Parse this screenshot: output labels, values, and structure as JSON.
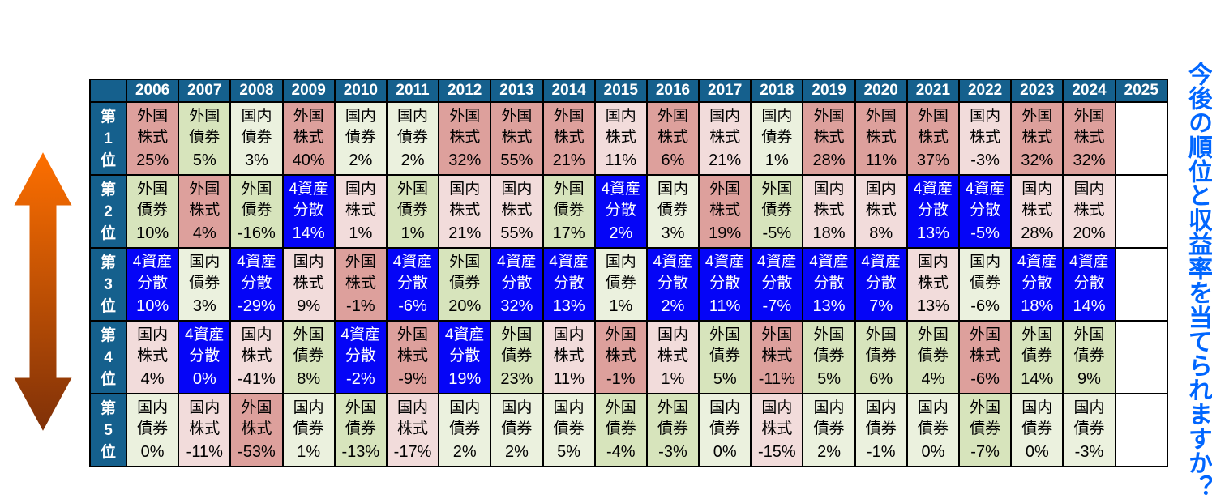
{
  "page": {
    "background": "#FFFFFF"
  },
  "side_note": {
    "text": "今後の順位と収益率を当てられますか？",
    "color": "#0066FF"
  },
  "arrow": {
    "direction": "up-down",
    "color_top": "#FF7000",
    "color_bottom": "#7E3008",
    "outline": "#FFFFFF"
  },
  "colors": {
    "header_bg": "#15608D",
    "header_text": "#FFFFFF",
    "grid_border": "#000000"
  },
  "chart_data": {
    "type": "table",
    "title": "",
    "years": [
      "2006",
      "2007",
      "2008",
      "2009",
      "2010",
      "2011",
      "2012",
      "2013",
      "2014",
      "2015",
      "2016",
      "2017",
      "2018",
      "2019",
      "2020",
      "2021",
      "2022",
      "2023",
      "2024",
      "2025"
    ],
    "empty_years": [
      "2025"
    ],
    "rank_labels": [
      "第1位",
      "第2位",
      "第3位",
      "第4位",
      "第5位"
    ],
    "assets": {
      "fe": {
        "name": "外国株式",
        "lines": [
          "外国",
          "株式"
        ],
        "bg": "#DDA09C",
        "fg": "#000000"
      },
      "de": {
        "name": "国内株式",
        "lines": [
          "国内",
          "株式"
        ],
        "bg": "#F2DCDB",
        "fg": "#000000"
      },
      "fb": {
        "name": "外国債券",
        "lines": [
          "外国",
          "債券"
        ],
        "bg": "#D7E4BC",
        "fg": "#000000"
      },
      "db": {
        "name": "国内債券",
        "lines": [
          "国内",
          "債券"
        ],
        "bg": "#EBF1DE",
        "fg": "#000000"
      },
      "fa": {
        "name": "4資産分散",
        "lines": [
          "4資産",
          "分散"
        ],
        "bg": "#0505F7",
        "fg": "#FFFFFF"
      }
    },
    "rows": [
      {
        "rank": "第1位",
        "cells": [
          {
            "asset": "fe",
            "value": "25%"
          },
          {
            "asset": "fb",
            "value": "5%"
          },
          {
            "asset": "db",
            "value": "3%"
          },
          {
            "asset": "fe",
            "value": "40%"
          },
          {
            "asset": "db",
            "value": "2%"
          },
          {
            "asset": "db",
            "value": "2%"
          },
          {
            "asset": "fe",
            "value": "32%"
          },
          {
            "asset": "fe",
            "value": "55%"
          },
          {
            "asset": "fe",
            "value": "21%"
          },
          {
            "asset": "de",
            "value": "11%"
          },
          {
            "asset": "fe",
            "value": "6%"
          },
          {
            "asset": "de",
            "value": "21%"
          },
          {
            "asset": "db",
            "value": "1%"
          },
          {
            "asset": "fe",
            "value": "28%"
          },
          {
            "asset": "fe",
            "value": "11%"
          },
          {
            "asset": "fe",
            "value": "37%"
          },
          {
            "asset": "de",
            "value": "-3%"
          },
          {
            "asset": "fe",
            "value": "32%"
          },
          {
            "asset": "fe",
            "value": "32%"
          }
        ]
      },
      {
        "rank": "第2位",
        "cells": [
          {
            "asset": "fb",
            "value": "10%"
          },
          {
            "asset": "fe",
            "value": "4%"
          },
          {
            "asset": "fb",
            "value": "-16%"
          },
          {
            "asset": "fa",
            "value": "14%"
          },
          {
            "asset": "de",
            "value": "1%"
          },
          {
            "asset": "fb",
            "value": "1%"
          },
          {
            "asset": "de",
            "value": "21%"
          },
          {
            "asset": "de",
            "value": "55%"
          },
          {
            "asset": "fb",
            "value": "17%"
          },
          {
            "asset": "fa",
            "value": "2%"
          },
          {
            "asset": "db",
            "value": "3%"
          },
          {
            "asset": "fe",
            "value": "19%"
          },
          {
            "asset": "fb",
            "value": "-5%"
          },
          {
            "asset": "de",
            "value": "18%"
          },
          {
            "asset": "de",
            "value": "8%"
          },
          {
            "asset": "fa",
            "value": "13%"
          },
          {
            "asset": "fa",
            "value": "-5%"
          },
          {
            "asset": "de",
            "value": "28%"
          },
          {
            "asset": "de",
            "value": "20%"
          }
        ]
      },
      {
        "rank": "第3位",
        "cells": [
          {
            "asset": "fa",
            "value": "10%"
          },
          {
            "asset": "db",
            "value": "3%"
          },
          {
            "asset": "fa",
            "value": "-29%"
          },
          {
            "asset": "de",
            "value": "9%"
          },
          {
            "asset": "fe",
            "value": "-1%"
          },
          {
            "asset": "fa",
            "value": "-6%"
          },
          {
            "asset": "fb",
            "value": "20%"
          },
          {
            "asset": "fa",
            "value": "32%"
          },
          {
            "asset": "fa",
            "value": "13%"
          },
          {
            "asset": "db",
            "value": "1%"
          },
          {
            "asset": "fa",
            "value": "2%"
          },
          {
            "asset": "fa",
            "value": "11%"
          },
          {
            "asset": "fa",
            "value": "-7%"
          },
          {
            "asset": "fa",
            "value": "13%"
          },
          {
            "asset": "fa",
            "value": "7%"
          },
          {
            "asset": "de",
            "value": "13%"
          },
          {
            "asset": "db",
            "value": "-6%"
          },
          {
            "asset": "fa",
            "value": "18%"
          },
          {
            "asset": "fa",
            "value": "14%"
          }
        ]
      },
      {
        "rank": "第4位",
        "cells": [
          {
            "asset": "de",
            "value": "4%"
          },
          {
            "asset": "fa",
            "value": "0%"
          },
          {
            "asset": "de",
            "value": "-41%"
          },
          {
            "asset": "fb",
            "value": "8%"
          },
          {
            "asset": "fa",
            "value": "-2%"
          },
          {
            "asset": "fe",
            "value": "-9%"
          },
          {
            "asset": "fa",
            "value": "19%"
          },
          {
            "asset": "fb",
            "value": "23%"
          },
          {
            "asset": "de",
            "value": "11%"
          },
          {
            "asset": "fe",
            "value": "-1%"
          },
          {
            "asset": "de",
            "value": "1%"
          },
          {
            "asset": "fb",
            "value": "5%"
          },
          {
            "asset": "fe",
            "value": "-11%"
          },
          {
            "asset": "fb",
            "value": "5%"
          },
          {
            "asset": "fb",
            "value": "6%"
          },
          {
            "asset": "fb",
            "value": "4%"
          },
          {
            "asset": "fe",
            "value": "-6%"
          },
          {
            "asset": "fb",
            "value": "14%"
          },
          {
            "asset": "fb",
            "value": "9%"
          }
        ]
      },
      {
        "rank": "第5位",
        "cells": [
          {
            "asset": "db",
            "value": "0%"
          },
          {
            "asset": "de",
            "value": "-11%"
          },
          {
            "asset": "fe",
            "value": "-53%"
          },
          {
            "asset": "db",
            "value": "1%"
          },
          {
            "asset": "fb",
            "value": "-13%"
          },
          {
            "asset": "de",
            "value": "-17%"
          },
          {
            "asset": "db",
            "value": "2%"
          },
          {
            "asset": "db",
            "value": "2%"
          },
          {
            "asset": "db",
            "value": "5%"
          },
          {
            "asset": "fb",
            "value": "-4%"
          },
          {
            "asset": "fb",
            "value": "-3%"
          },
          {
            "asset": "db",
            "value": "0%"
          },
          {
            "asset": "de",
            "value": "-15%"
          },
          {
            "asset": "db",
            "value": "2%"
          },
          {
            "asset": "db",
            "value": "-1%"
          },
          {
            "asset": "db",
            "value": "0%"
          },
          {
            "asset": "fb",
            "value": "-7%"
          },
          {
            "asset": "db",
            "value": "0%"
          },
          {
            "asset": "db",
            "value": "-3%"
          }
        ]
      }
    ]
  }
}
